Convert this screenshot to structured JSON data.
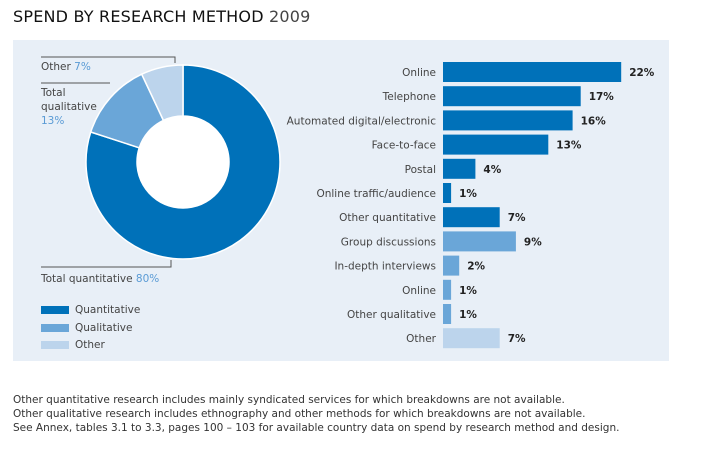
{
  "title": {
    "main": "SPEND BY RESEARCH METHOD",
    "year": "2009"
  },
  "colors": {
    "quantitative": "#0071b9",
    "qualitative": "#6aa6d8",
    "other": "#bcd4ec",
    "background": "#e8eff7"
  },
  "chart_data": [
    {
      "type": "pie",
      "variant": "donut",
      "slices": [
        {
          "label": "Total quantitative",
          "value": 80,
          "value_label": "80%",
          "category": "quantitative"
        },
        {
          "label": "Total qualitative",
          "value": 13,
          "value_label": "13%",
          "category": "qualitative"
        },
        {
          "label": "Other",
          "value": 7,
          "value_label": "7%",
          "category": "other"
        }
      ],
      "legend": {
        "placement": "bottom-left",
        "entries": [
          "Quantitative",
          "Qualitative",
          "Other"
        ]
      }
    },
    {
      "type": "bar",
      "orientation": "horizontal",
      "categories": [
        "Online",
        "Telephone",
        "Automated digital/electronic",
        "Face-to-face",
        "Postal",
        "Online traffic/audience",
        "Other quantitative",
        "Group discussions",
        "In-depth interviews",
        "Online",
        "Other qualitative",
        "Other"
      ],
      "values": [
        22,
        17,
        16,
        13,
        4,
        1,
        7,
        9,
        2,
        1,
        1,
        7
      ],
      "value_labels": [
        "22%",
        "17%",
        "16%",
        "13%",
        "4%",
        "1%",
        "7%",
        "9%",
        "2%",
        "1%",
        "1%",
        "7%"
      ],
      "groups": [
        "quantitative",
        "quantitative",
        "quantitative",
        "quantitative",
        "quantitative",
        "quantitative",
        "quantitative",
        "qualitative",
        "qualitative",
        "qualitative",
        "qualitative",
        "other"
      ],
      "unit": "%"
    }
  ],
  "footnotes": [
    "Other quantitative research includes mainly syndicated services for which breakdowns are not available.",
    "Other qualitative research includes ethnography and other methods for which breakdowns are not available.",
    "See Annex, tables 3.1 to 3.3, pages 100 – 103 for available country data on spend by research method and design."
  ]
}
